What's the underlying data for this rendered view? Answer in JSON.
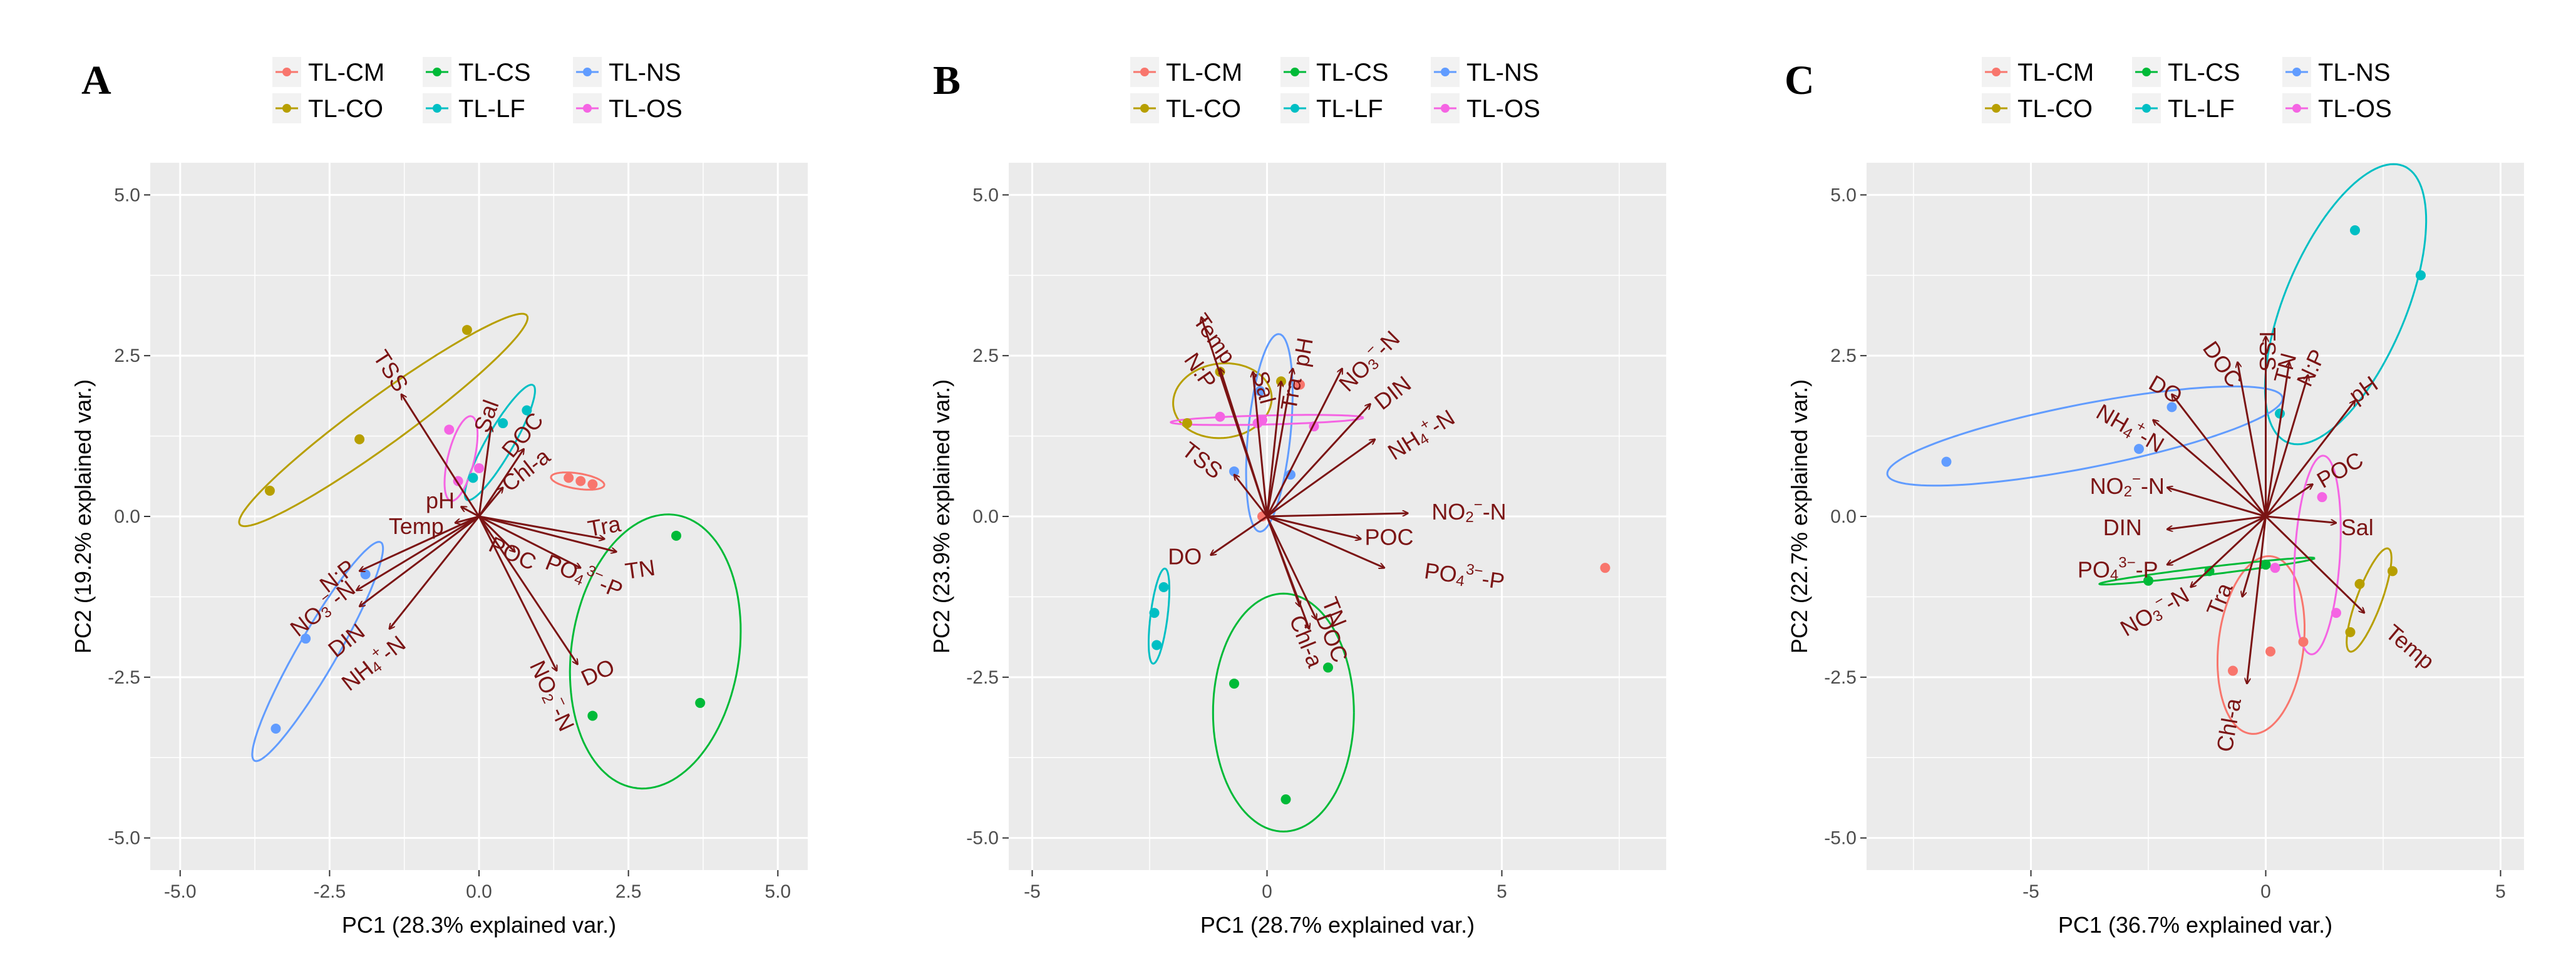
{
  "colors": {
    "TL-CM": "#F8766D",
    "TL-CO": "#B79F00",
    "TL-CS": "#00BA38",
    "TL-LF": "#00BFC4",
    "TL-NS": "#619CFF",
    "TL-OS": "#F564E3",
    "arrow": "#7b1414",
    "panel_bg": "#EBEBEB",
    "grid": "#FFFFFF"
  },
  "chart_data": [
    {
      "panel": "A",
      "type": "scatter",
      "xlabel": "PC1 (28.3% explained var.)",
      "ylabel": "PC2 (19.2% explained var.)",
      "xlim": [
        -5.5,
        5.5
      ],
      "ylim": [
        -5.5,
        5.5
      ],
      "xticks": [
        -5.0,
        -2.5,
        0.0,
        2.5,
        5.0
      ],
      "yticks": [
        -5.0,
        -2.5,
        0.0,
        2.5,
        5.0
      ],
      "tick_format": "1dp",
      "legend": [
        "TL-CM",
        "TL-CO",
        "TL-CS",
        "TL-LF",
        "TL-NS",
        "TL-OS"
      ],
      "series": [
        {
          "name": "TL-CM",
          "points": [
            [
              1.5,
              0.6
            ],
            [
              1.7,
              0.55
            ],
            [
              1.9,
              0.5
            ]
          ],
          "ellipse": {
            "cx": 1.65,
            "cy": 0.55,
            "rx": 0.45,
            "ry": 0.12,
            "angle": -8
          }
        },
        {
          "name": "TL-CO",
          "points": [
            [
              -3.5,
              0.4
            ],
            [
              -2.0,
              1.2
            ],
            [
              -0.2,
              2.9
            ]
          ],
          "ellipse": {
            "cx": -1.6,
            "cy": 1.5,
            "rx": 2.9,
            "ry": 0.38,
            "angle": 34
          }
        },
        {
          "name": "TL-CS",
          "points": [
            [
              3.3,
              -0.3
            ],
            [
              3.7,
              -2.9
            ],
            [
              1.9,
              -3.1
            ]
          ],
          "ellipse": {
            "cx": 2.95,
            "cy": -2.1,
            "rx": 2.15,
            "ry": 1.4,
            "angle": 80
          }
        },
        {
          "name": "TL-LF",
          "points": [
            [
              0.8,
              1.65
            ],
            [
              0.4,
              1.45
            ],
            [
              -0.1,
              0.6
            ]
          ],
          "ellipse": {
            "cx": 0.35,
            "cy": 1.15,
            "rx": 1.05,
            "ry": 0.22,
            "angle": 58
          }
        },
        {
          "name": "TL-NS",
          "points": [
            [
              -1.9,
              -0.9
            ],
            [
              -2.9,
              -1.9
            ],
            [
              -3.4,
              -3.3
            ]
          ],
          "ellipse": {
            "cx": -2.7,
            "cy": -2.1,
            "rx": 2.0,
            "ry": 0.32,
            "angle": 58
          }
        },
        {
          "name": "TL-OS",
          "points": [
            [
              -0.5,
              1.35
            ],
            [
              -0.35,
              0.55
            ],
            [
              0.0,
              0.75
            ]
          ],
          "ellipse": {
            "cx": -0.3,
            "cy": 0.9,
            "rx": 0.68,
            "ry": 0.22,
            "angle": 75
          }
        }
      ],
      "loadings": [
        {
          "label": "TSS",
          "x": -1.3,
          "y": 1.9,
          "tx": -1.5,
          "ty": 2.25,
          "rot": 57
        },
        {
          "label": "Sal",
          "x": 0.2,
          "y": 1.4,
          "tx": 0.15,
          "ty": 1.55,
          "rot": -70
        },
        {
          "label": "DOC",
          "x": 0.75,
          "y": 1.05,
          "tx": 0.75,
          "ty": 1.25,
          "rot": -50
        },
        {
          "label": "Chl-a",
          "x": 0.4,
          "y": 0.45,
          "tx": 0.8,
          "ty": 0.7,
          "rot": -38
        },
        {
          "label": "pH",
          "x": -0.3,
          "y": 0.15,
          "tx": -0.65,
          "ty": 0.22,
          "rot": 0
        },
        {
          "label": "Temp",
          "x": -0.4,
          "y": -0.1,
          "tx": -1.05,
          "ty": -0.18,
          "rot": 0
        },
        {
          "label": "Tra",
          "x": 2.1,
          "y": -0.35,
          "tx": 2.1,
          "ty": -0.18,
          "rot": -10
        },
        {
          "label": "TN",
          "x": 2.3,
          "y": -0.55,
          "tx": 2.7,
          "ty": -0.85,
          "rot": -8
        },
        {
          "label": "POC",
          "x": 0.6,
          "y": -0.55,
          "tx": 0.55,
          "ty": -0.6,
          "rot": 25
        },
        {
          "label": "PO4³⁻-P",
          "x": 1.7,
          "y": -0.8,
          "tx": 1.75,
          "ty": -0.95,
          "rot": 22
        },
        {
          "label": "DO",
          "x": 1.65,
          "y": -2.3,
          "tx": 2.0,
          "ty": -2.45,
          "rot": -25
        },
        {
          "label": "NO2⁻-N",
          "x": 1.3,
          "y": -2.4,
          "tx": 1.2,
          "ty": -2.8,
          "rot": 65
        },
        {
          "label": "N:P",
          "x": -2.0,
          "y": -0.85,
          "tx": -2.35,
          "ty": -0.95,
          "rot": -38
        },
        {
          "label": "NO3⁻-N",
          "x": -2.05,
          "y": -1.15,
          "tx": -2.6,
          "ty": -1.45,
          "rot": -38
        },
        {
          "label": "DIN",
          "x": -2.0,
          "y": -1.4,
          "tx": -2.2,
          "ty": -1.95,
          "rot": -38
        },
        {
          "label": "NH4⁺-N",
          "x": -1.5,
          "y": -1.75,
          "tx": -1.75,
          "ty": -2.3,
          "rot": -38
        }
      ]
    },
    {
      "panel": "B",
      "type": "scatter",
      "xlabel": "PC1 (28.7% explained var.)",
      "ylabel": "PC2 (23.9% explained var.)",
      "xlim": [
        -5.5,
        8.5
      ],
      "ylim": [
        -5.5,
        5.5
      ],
      "xticks": [
        -5,
        0,
        5
      ],
      "yticks": [
        -5.0,
        -2.5,
        0.0,
        2.5,
        5.0
      ],
      "tick_format": "mixed",
      "legend": [
        "TL-CM",
        "TL-CO",
        "TL-CS",
        "TL-LF",
        "TL-NS",
        "TL-OS"
      ],
      "series": [
        {
          "name": "TL-CM",
          "points": [
            [
              0.7,
              2.05
            ],
            [
              -0.1,
              0.0
            ],
            [
              7.2,
              -0.8
            ]
          ],
          "ellipse": null
        },
        {
          "name": "TL-CO",
          "points": [
            [
              -1.7,
              1.45
            ],
            [
              -1.0,
              2.25
            ],
            [
              0.3,
              2.1
            ]
          ],
          "ellipse": {
            "cx": -0.95,
            "cy": 1.8,
            "rx": 1.05,
            "ry": 0.58,
            "angle": 3
          }
        },
        {
          "name": "TL-CS",
          "points": [
            [
              -0.7,
              -2.6
            ],
            [
              0.4,
              -4.4
            ],
            [
              1.3,
              -2.35
            ]
          ],
          "ellipse": {
            "cx": 0.35,
            "cy": -3.05,
            "rx": 1.5,
            "ry": 1.85,
            "angle": 0
          }
        },
        {
          "name": "TL-LF",
          "points": [
            [
              -2.2,
              -1.1
            ],
            [
              -2.4,
              -1.5
            ],
            [
              -2.35,
              -2.0
            ]
          ],
          "ellipse": {
            "cx": -2.3,
            "cy": -1.55,
            "rx": 0.75,
            "ry": 0.18,
            "angle": 80
          }
        },
        {
          "name": "TL-NS",
          "points": [
            [
              -0.15,
              1.95
            ],
            [
              0.5,
              0.65
            ],
            [
              -0.7,
              0.7
            ]
          ],
          "ellipse": {
            "cx": 0.05,
            "cy": 1.3,
            "rx": 1.55,
            "ry": 0.45,
            "angle": 82
          }
        },
        {
          "name": "TL-OS",
          "points": [
            [
              -0.1,
              1.5
            ],
            [
              -1.0,
              1.55
            ],
            [
              1.0,
              1.4
            ],
            [
              -0.2,
              1.45
            ]
          ],
          "ellipse": {
            "cx": 0.0,
            "cy": 1.5,
            "rx": 2.05,
            "ry": 0.07,
            "angle": 1
          }
        }
      ],
      "loadings": [
        {
          "label": "Temp",
          "x": -1.4,
          "y": 3.1,
          "tx": -1.15,
          "ty": 2.75,
          "rot": 55
        },
        {
          "label": "N:P",
          "x": -1.0,
          "y": 2.3,
          "tx": -1.45,
          "ty": 2.25,
          "rot": 55
        },
        {
          "label": "Sal",
          "x": -0.3,
          "y": 2.25,
          "tx": -0.1,
          "ty": 2.0,
          "rot": 75
        },
        {
          "label": "Tra",
          "x": 0.3,
          "y": 2.1,
          "tx": 0.55,
          "ty": 1.9,
          "rot": -80
        },
        {
          "label": "pH",
          "x": 0.55,
          "y": 2.3,
          "tx": 0.8,
          "ty": 2.55,
          "rot": -80
        },
        {
          "label": "NO3⁻-N",
          "x": 1.6,
          "y": 2.3,
          "tx": 2.2,
          "ty": 2.4,
          "rot": -45
        },
        {
          "label": "DIN",
          "x": 2.2,
          "y": 1.75,
          "tx": 2.7,
          "ty": 1.9,
          "rot": -38
        },
        {
          "label": "NH4⁺-N",
          "x": 2.3,
          "y": 1.2,
          "tx": 3.3,
          "ty": 1.25,
          "rot": -32
        },
        {
          "label": "TSS",
          "x": -0.7,
          "y": 0.65,
          "tx": -1.4,
          "ty": 0.85,
          "rot": 38
        },
        {
          "label": "NO2⁻-N",
          "x": 3.0,
          "y": 0.05,
          "tx": 4.3,
          "ty": 0.05,
          "rot": 0
        },
        {
          "label": "POC",
          "x": 2.0,
          "y": -0.35,
          "tx": 2.6,
          "ty": -0.35,
          "rot": 0
        },
        {
          "label": "PO4³⁻-P",
          "x": 2.5,
          "y": -0.8,
          "tx": 4.2,
          "ty": -0.95,
          "rot": 8
        },
        {
          "label": "DO",
          "x": -1.2,
          "y": -0.6,
          "tx": -1.75,
          "ty": -0.65,
          "rot": 0
        },
        {
          "label": "TN",
          "x": 1.05,
          "y": -1.6,
          "tx": 1.4,
          "ty": -1.5,
          "rot": 68
        },
        {
          "label": "DOC",
          "x": 0.9,
          "y": -1.75,
          "tx": 1.35,
          "ty": -1.9,
          "rot": 68
        },
        {
          "label": "Chl-a",
          "x": 0.7,
          "y": -1.4,
          "tx": 0.8,
          "ty": -1.95,
          "rot": 68
        }
      ]
    },
    {
      "panel": "C",
      "type": "scatter",
      "xlabel": "PC1 (36.7% explained var.)",
      "ylabel": "PC2 (22.7% explained var.)",
      "xlim": [
        -8.5,
        5.5
      ],
      "ylim": [
        -5.5,
        5.5
      ],
      "xticks": [
        -5,
        0,
        5
      ],
      "yticks": [
        -5.0,
        -2.5,
        0.0,
        2.5,
        5.0
      ],
      "tick_format": "mixed",
      "legend": [
        "TL-CM",
        "TL-CO",
        "TL-CS",
        "TL-LF",
        "TL-NS",
        "TL-OS"
      ],
      "series": [
        {
          "name": "TL-CM",
          "points": [
            [
              -0.7,
              -2.4
            ],
            [
              0.1,
              -2.1
            ],
            [
              0.8,
              -1.95
            ]
          ],
          "ellipse": {
            "cx": -0.1,
            "cy": -2.0,
            "rx": 1.4,
            "ry": 0.9,
            "angle": 78
          }
        },
        {
          "name": "TL-CO",
          "points": [
            [
              2.0,
              -1.05
            ],
            [
              1.8,
              -1.8
            ],
            [
              2.7,
              -0.85
            ]
          ],
          "ellipse": {
            "cx": 2.2,
            "cy": -1.3,
            "rx": 0.9,
            "ry": 0.25,
            "angle": 62
          }
        },
        {
          "name": "TL-CS",
          "points": [
            [
              -2.5,
              -1.0
            ],
            [
              -1.2,
              -0.85
            ],
            [
              0.0,
              -0.75
            ]
          ],
          "ellipse": {
            "cx": -1.25,
            "cy": -0.85,
            "rx": 2.3,
            "ry": 0.06,
            "angle": 5
          }
        },
        {
          "name": "TL-LF",
          "points": [
            [
              0.3,
              1.6
            ],
            [
              1.9,
              4.45
            ],
            [
              3.3,
              3.75
            ]
          ],
          "ellipse": {
            "cx": 1.7,
            "cy": 3.3,
            "rx": 2.5,
            "ry": 1.2,
            "angle": 56
          }
        },
        {
          "name": "TL-NS",
          "points": [
            [
              -6.8,
              0.85
            ],
            [
              -2.0,
              1.7
            ],
            [
              -2.7,
              1.05
            ]
          ],
          "ellipse": {
            "cx": -3.85,
            "cy": 1.25,
            "rx": 4.25,
            "ry": 0.5,
            "angle": 8
          }
        },
        {
          "name": "TL-OS",
          "points": [
            [
              0.2,
              -0.8
            ],
            [
              1.5,
              -1.5
            ],
            [
              1.2,
              0.3
            ]
          ],
          "ellipse": {
            "cx": 1.1,
            "cy": -0.6,
            "rx": 1.55,
            "ry": 0.48,
            "angle": 85
          }
        }
      ],
      "loadings": [
        {
          "label": "TSS",
          "x": 0.0,
          "y": 2.8,
          "tx": 0.0,
          "ty": 2.6,
          "rot": 90
        },
        {
          "label": "TN",
          "x": 0.5,
          "y": 2.4,
          "tx": 0.45,
          "ty": 2.3,
          "rot": -75
        },
        {
          "label": "N:P",
          "x": 0.9,
          "y": 2.2,
          "tx": 1.0,
          "ty": 2.3,
          "rot": -65
        },
        {
          "label": "pH",
          "x": 1.9,
          "y": 1.8,
          "tx": 2.1,
          "ty": 1.95,
          "rot": -35
        },
        {
          "label": "DOC",
          "x": -0.6,
          "y": 2.4,
          "tx": -0.95,
          "ty": 2.35,
          "rot": 55
        },
        {
          "label": "DO",
          "x": -2.0,
          "y": 1.9,
          "tx": -2.15,
          "ty": 1.95,
          "rot": 30
        },
        {
          "label": "NH4⁺-N",
          "x": -2.4,
          "y": 1.5,
          "tx": -2.9,
          "ty": 1.35,
          "rot": 30
        },
        {
          "label": "POC",
          "x": 1.0,
          "y": 0.5,
          "tx": 1.6,
          "ty": 0.7,
          "rot": -30
        },
        {
          "label": "NO2⁻-N",
          "x": -2.1,
          "y": 0.45,
          "tx": -2.95,
          "ty": 0.45,
          "rot": 0
        },
        {
          "label": "Sal",
          "x": 1.5,
          "y": -0.1,
          "tx": 1.95,
          "ty": -0.2,
          "rot": 0
        },
        {
          "label": "DIN",
          "x": -2.1,
          "y": -0.2,
          "tx": -3.05,
          "ty": -0.2,
          "rot": 0
        },
        {
          "label": "PO4³⁻-P",
          "x": -2.1,
          "y": -0.75,
          "tx": -3.15,
          "ty": -0.85,
          "rot": 0
        },
        {
          "label": "NO3⁻-N",
          "x": -1.6,
          "y": -1.1,
          "tx": -2.35,
          "ty": -1.5,
          "rot": -30
        },
        {
          "label": "Tra",
          "x": -0.5,
          "y": -1.25,
          "tx": -0.95,
          "ty": -1.3,
          "rot": -68
        },
        {
          "label": "Temp",
          "x": 2.1,
          "y": -1.5,
          "tx": 3.05,
          "ty": -2.05,
          "rot": 40
        },
        {
          "label": "Chl-a",
          "x": -0.4,
          "y": -2.6,
          "tx": -0.75,
          "ty": -3.25,
          "rot": -80
        }
      ]
    }
  ]
}
